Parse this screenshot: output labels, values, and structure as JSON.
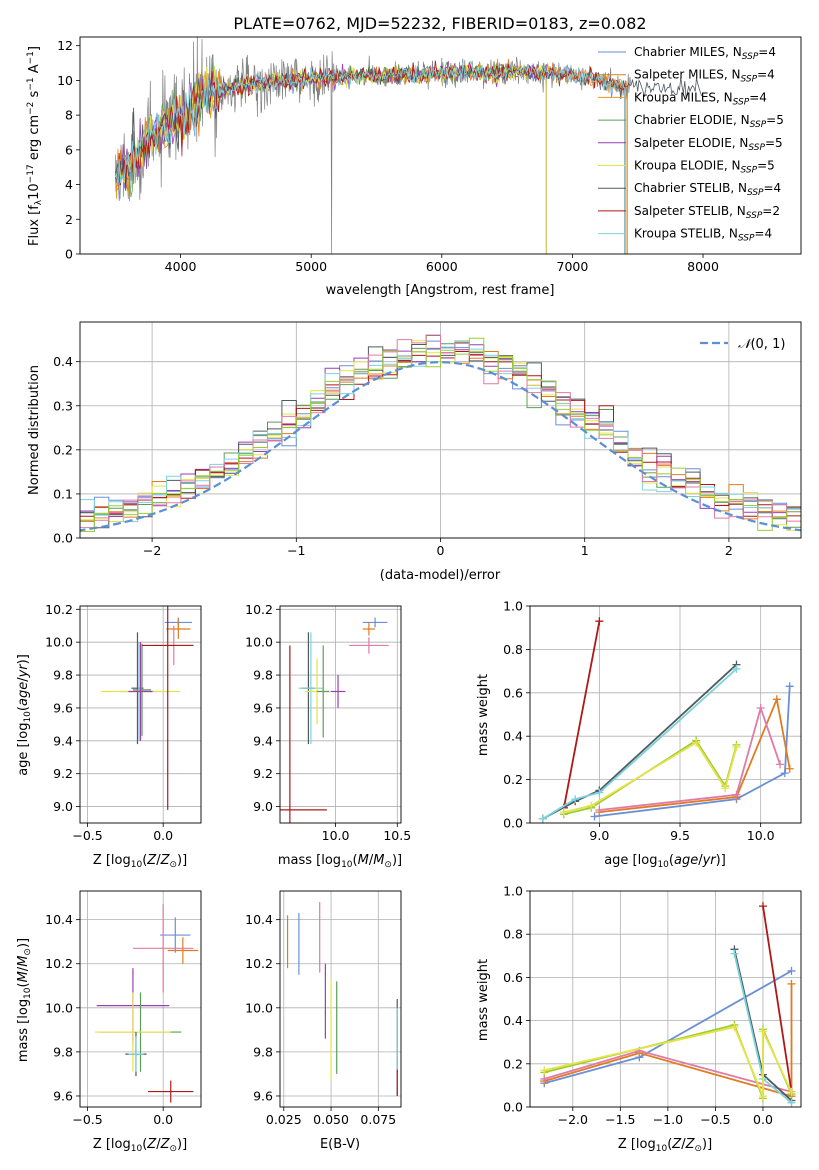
{
  "title": "PLATE=0762, MJD=52232, FIBERID=0183, z=0.082",
  "colors": {
    "Chabrier MILES": "#6a8fd8",
    "Salpeter MILES": "#e07c20",
    "Kroupa MILES": "#e8971f",
    "Chabrier ELODIE": "#5c9e58",
    "Salpeter ELODIE": "#9a3fb5",
    "Kroupa ELODIE": "#e6e24a",
    "Chabrier STELIB": "#505a60",
    "Salpeter STELIB": "#b01818",
    "Kroupa STELIB": "#7dd3dc",
    "data": "#808080",
    "normal": "#5b8fd6",
    "pink": "#e07aa8",
    "olive": "#9acd32"
  },
  "chart_data": [
    {
      "id": "spectrum",
      "type": "line",
      "xlabel": "wavelength [Angstrom, rest frame]",
      "ylabel": "Flux [f_λ10^{-17} erg cm^{-2} s^{-1} A^{-1}]",
      "xlim": [
        3230,
        8750
      ],
      "ylim": [
        0,
        12.5
      ],
      "xticks": [
        4000,
        5000,
        6000,
        7000,
        8000
      ],
      "yticks": [
        0,
        2,
        4,
        6,
        8,
        10,
        12
      ],
      "grid": false,
      "legend_position": "right",
      "legend": [
        {
          "label": "Chabrier MILES, N_SSP=4",
          "color": "Chabrier MILES"
        },
        {
          "label": "Salpeter MILES, N_SSP=4",
          "color": "Salpeter MILES"
        },
        {
          "label": "Kroupa MILES, N_SSP=4",
          "color": "Kroupa MILES"
        },
        {
          "label": "Chabrier ELODIE, N_SSP=5",
          "color": "Chabrier ELODIE"
        },
        {
          "label": "Salpeter ELODIE, N_SSP=5",
          "color": "Salpeter ELODIE"
        },
        {
          "label": "Kroupa ELODIE, N_SSP=5",
          "color": "Kroupa ELODIE"
        },
        {
          "label": "Chabrier STELIB, N_SSP=4",
          "color": "Chabrier STELIB"
        },
        {
          "label": "Salpeter STELIB, N_SSP=2",
          "color": "Salpeter STELIB"
        },
        {
          "label": "Kroupa STELIB, N_SSP=4",
          "color": "Kroupa STELIB"
        }
      ],
      "continuum": {
        "x": [
          3500,
          3600,
          3700,
          3800,
          3900,
          4000,
          4100,
          4200,
          4400,
          4600,
          4800,
          5000,
          5200,
          5400,
          5600,
          5800,
          6000,
          6200,
          6400,
          6600,
          6800,
          7000,
          7200,
          7400
        ],
        "y": [
          4.5,
          5.2,
          6.0,
          6.8,
          7.3,
          7.8,
          8.6,
          9.3,
          9.6,
          9.8,
          10.0,
          10.1,
          10.2,
          10.25,
          10.3,
          10.35,
          10.4,
          10.45,
          10.45,
          10.5,
          10.45,
          10.3,
          10.0,
          9.6
        ]
      }
    },
    {
      "id": "residuals",
      "type": "histogram",
      "xlabel": "(data-model)/error",
      "ylabel": "Normed distribution",
      "xlim": [
        -2.5,
        2.5
      ],
      "ylim": [
        0,
        0.49
      ],
      "xticks": [
        -2,
        -1,
        0,
        1,
        2
      ],
      "yticks": [
        0.0,
        0.1,
        0.2,
        0.3,
        0.4
      ],
      "grid": true,
      "legend_position": "top-right",
      "legend": [
        {
          "label": "N(0,1)",
          "color": "normal"
        }
      ],
      "bin_width": 0.1
    },
    {
      "id": "age-vs-Z",
      "type": "errorbar",
      "xlabel": "Z [log10(Z/Z⊙)]",
      "ylabel": "age [log10(age/yr)]",
      "xlim": [
        -0.55,
        0.25
      ],
      "ylim": [
        8.9,
        10.22
      ],
      "xticks": [
        -0.5,
        0.0
      ],
      "yticks": [
        9.0,
        9.2,
        9.4,
        9.6,
        9.8,
        10.0,
        10.2
      ],
      "grid": true,
      "points": [
        {
          "c": "Chabrier MILES",
          "x": 0.1,
          "y": 10.12,
          "xerr": 0.09,
          "yerr": 0.03
        },
        {
          "c": "Salpeter MILES",
          "x": 0.1,
          "y": 10.08,
          "xerr": 0.08,
          "yerr": 0.06
        },
        {
          "c": "pink",
          "x": 0.07,
          "y": 9.98,
          "xerr": 0.13,
          "yerr": 0.12
        },
        {
          "c": "Chabrier STELIB",
          "x": -0.17,
          "y": 9.72,
          "xerr": 0.04,
          "yerr": 0.34
        },
        {
          "c": "Chabrier ELODIE",
          "x": -0.14,
          "y": 9.71,
          "xerr": 0.06,
          "yerr": 0.28
        },
        {
          "c": "Kroupa STELIB",
          "x": -0.16,
          "y": 9.7,
          "xerr": 0.12,
          "yerr": 0.3
        },
        {
          "c": "Kroupa ELODIE",
          "x": -0.15,
          "y": 9.7,
          "xerr": 0.26,
          "yerr": 0.29
        },
        {
          "c": "Salpeter ELODIE",
          "x": -0.15,
          "y": 9.7,
          "xerr": 0.08,
          "yerr": 0.3
        },
        {
          "c": "Salpeter STELIB",
          "x": 0.03,
          "y": 9.98,
          "xerr": 0.17,
          "yerr": 1.0
        }
      ]
    },
    {
      "id": "age-vs-mass",
      "type": "errorbar",
      "xlabel": "mass [log10(M/M⊙)]",
      "ylabel": "",
      "xlim": [
        9.55,
        10.53
      ],
      "ylim": [
        8.9,
        10.22
      ],
      "xticks": [
        9.5,
        10.0,
        10.5
      ],
      "yticks": [
        9.0,
        9.2,
        9.4,
        9.6,
        9.8,
        10.0,
        10.2
      ],
      "grid": true,
      "points": [
        {
          "c": "Chabrier MILES",
          "x": 10.32,
          "y": 10.12,
          "xerr": 0.1,
          "yerr": 0.03
        },
        {
          "c": "Salpeter MILES",
          "x": 10.27,
          "y": 10.08,
          "xerr": 0.05,
          "yerr": 0.04
        },
        {
          "c": "pink",
          "x": 10.27,
          "y": 9.98,
          "xerr": 0.16,
          "yerr": 0.05
        },
        {
          "c": "Chabrier STELIB",
          "x": 9.78,
          "y": 9.72,
          "xerr": 0.05,
          "yerr": 0.34
        },
        {
          "c": "Kroupa STELIB",
          "x": 9.8,
          "y": 9.72,
          "xerr": 0.1,
          "yerr": 0.34
        },
        {
          "c": "Kroupa ELODIE",
          "x": 9.85,
          "y": 9.7,
          "xerr": 0.1,
          "yerr": 0.2
        },
        {
          "c": "Chabrier ELODIE",
          "x": 9.9,
          "y": 9.7,
          "xerr": 0.05,
          "yerr": 0.28
        },
        {
          "c": "Salpeter ELODIE",
          "x": 10.02,
          "y": 9.7,
          "xerr": 0.06,
          "yerr": 0.1
        },
        {
          "c": "Salpeter STELIB",
          "x": 9.63,
          "y": 8.98,
          "xerr": 0.3,
          "yerr": 1.0
        }
      ]
    },
    {
      "id": "weight-vs-age",
      "type": "line",
      "xlabel": "age [log10(age/yr)]",
      "ylabel": "mass weight",
      "xlim": [
        8.57,
        10.25
      ],
      "ylim": [
        0,
        1.0
      ],
      "xticks": [
        9.0,
        9.5,
        10.0
      ],
      "yticks": [
        0.0,
        0.2,
        0.4,
        0.6,
        0.8,
        1.0
      ],
      "grid": true,
      "series": [
        {
          "c": "Chabrier MILES",
          "x": [
            8.97,
            9.85,
            10.15,
            10.18
          ],
          "y": [
            0.03,
            0.11,
            0.23,
            0.63
          ]
        },
        {
          "c": "Salpeter MILES",
          "x": [
            9.0,
            9.85,
            10.1,
            10.18
          ],
          "y": [
            0.05,
            0.12,
            0.57,
            0.25
          ]
        },
        {
          "c": "pink",
          "x": [
            9.0,
            9.85,
            10.0,
            10.12
          ],
          "y": [
            0.06,
            0.13,
            0.53,
            0.27
          ]
        },
        {
          "c": "Salpeter STELIB",
          "x": [
            8.78,
            9.0
          ],
          "y": [
            0.07,
            0.93
          ]
        },
        {
          "c": "Chabrier STELIB",
          "x": [
            8.65,
            8.85,
            9.0,
            9.85
          ],
          "y": [
            0.02,
            0.1,
            0.15,
            0.73
          ]
        },
        {
          "c": "Kroupa STELIB",
          "x": [
            8.65,
            8.85,
            9.0,
            9.85
          ],
          "y": [
            0.02,
            0.11,
            0.14,
            0.71
          ]
        },
        {
          "c": "olive",
          "x": [
            8.78,
            8.95,
            9.6,
            9.78,
            9.85
          ],
          "y": [
            0.04,
            0.07,
            0.38,
            0.17,
            0.36
          ]
        },
        {
          "c": "Kroupa ELODIE",
          "x": [
            8.78,
            8.95,
            9.6,
            9.78,
            9.85
          ],
          "y": [
            0.05,
            0.08,
            0.37,
            0.16,
            0.35
          ]
        }
      ]
    },
    {
      "id": "mass-vs-Z",
      "type": "errorbar",
      "xlabel": "Z [log10(Z/Z⊙)]",
      "ylabel": "mass [log10(M/M⊙)]",
      "xlim": [
        -0.55,
        0.25
      ],
      "ylim": [
        9.55,
        10.53
      ],
      "xticks": [
        -0.5,
        0.0
      ],
      "yticks": [
        9.6,
        9.8,
        10.0,
        10.2,
        10.4
      ],
      "grid": true,
      "points": [
        {
          "c": "Chabrier MILES",
          "x": 0.08,
          "y": 10.33,
          "xerr": 0.1,
          "yerr": 0.08
        },
        {
          "c": "Salpeter MILES",
          "x": 0.13,
          "y": 10.26,
          "xerr": 0.1,
          "yerr": 0.06
        },
        {
          "c": "pink",
          "x": 0.0,
          "y": 10.27,
          "xerr": 0.2,
          "yerr": 0.2
        },
        {
          "c": "Salpeter ELODIE",
          "x": -0.2,
          "y": 10.01,
          "xerr": 0.24,
          "yerr": 0.17
        },
        {
          "c": "Chabrier ELODIE",
          "x": -0.15,
          "y": 9.89,
          "xerr": 0.27,
          "yerr": 0.18
        },
        {
          "c": "Kroupa ELODIE",
          "x": -0.2,
          "y": 9.89,
          "xerr": 0.25,
          "yerr": 0.18
        },
        {
          "c": "Chabrier STELIB",
          "x": -0.18,
          "y": 9.79,
          "xerr": 0.07,
          "yerr": 0.1
        },
        {
          "c": "Kroupa STELIB",
          "x": -0.18,
          "y": 9.79,
          "xerr": 0.05,
          "yerr": 0.08
        },
        {
          "c": "Salpeter STELIB",
          "x": 0.05,
          "y": 9.62,
          "xerr": 0.15,
          "yerr": 0.05
        }
      ]
    },
    {
      "id": "mass-vs-ebv",
      "type": "errorbar",
      "xlabel": "E(B-V)",
      "ylabel": "",
      "xlim": [
        0.023,
        0.087
      ],
      "ylim": [
        9.55,
        10.53
      ],
      "xticks": [
        0.025,
        0.05,
        0.075
      ],
      "yticks": [
        9.6,
        9.8,
        10.0,
        10.2,
        10.4
      ],
      "grid": true,
      "points": [
        {
          "c": "Salpeter MILES",
          "x": 0.027,
          "y": 10.3,
          "xerr": 0,
          "yerr": 0.12
        },
        {
          "c": "Chabrier MILES",
          "x": 0.033,
          "y": 10.29,
          "xerr": 0,
          "yerr": 0.14
        },
        {
          "c": "pink",
          "x": 0.044,
          "y": 10.32,
          "xerr": 0,
          "yerr": 0.16
        },
        {
          "c": "Salpeter ELODIE",
          "x": 0.047,
          "y": 10.03,
          "xerr": 0,
          "yerr": 0.17
        },
        {
          "c": "Kroupa ELODIE",
          "x": 0.05,
          "y": 9.9,
          "xerr": 0,
          "yerr": 0.23
        },
        {
          "c": "Chabrier ELODIE",
          "x": 0.053,
          "y": 9.91,
          "xerr": 0,
          "yerr": 0.21
        },
        {
          "c": "Chabrier STELIB",
          "x": 0.085,
          "y": 9.82,
          "xerr": 0,
          "yerr": 0.22
        },
        {
          "c": "Kroupa STELIB",
          "x": 0.085,
          "y": 9.8,
          "xerr": 0,
          "yerr": 0.2
        },
        {
          "c": "Salpeter STELIB",
          "x": 0.085,
          "y": 9.66,
          "xerr": 0,
          "yerr": 0.06
        }
      ]
    },
    {
      "id": "weight-vs-Z",
      "type": "line",
      "xlabel": "Z [log10(Z/Z⊙)]",
      "ylabel": "mass weight",
      "xlim": [
        -2.45,
        0.4
      ],
      "ylim": [
        0,
        1.0
      ],
      "xticks": [
        -2.0,
        -1.5,
        -1.0,
        -0.5,
        0.0
      ],
      "yticks": [
        0.0,
        0.2,
        0.4,
        0.6,
        0.8,
        1.0
      ],
      "grid": true,
      "series": [
        {
          "c": "Chabrier MILES",
          "x": [
            -2.3,
            -1.3,
            0.3
          ],
          "y": [
            0.11,
            0.23,
            0.63
          ]
        },
        {
          "c": "Salpeter MILES",
          "x": [
            -2.3,
            -1.3,
            0.3,
            0.3
          ],
          "y": [
            0.12,
            0.25,
            0.05,
            0.57
          ]
        },
        {
          "c": "pink",
          "x": [
            -2.3,
            -1.3,
            0.3
          ],
          "y": [
            0.13,
            0.26,
            0.07
          ]
        },
        {
          "c": "Salpeter STELIB",
          "x": [
            0.0,
            0.3
          ],
          "y": [
            0.93,
            0.07
          ]
        },
        {
          "c": "Chabrier STELIB",
          "x": [
            -0.3,
            0.0,
            0.3
          ],
          "y": [
            0.73,
            0.15,
            0.03
          ]
        },
        {
          "c": "Kroupa STELIB",
          "x": [
            -0.3,
            0.0,
            0.3
          ],
          "y": [
            0.71,
            0.13,
            0.02
          ]
        },
        {
          "c": "olive",
          "x": [
            -2.3,
            -0.3,
            0.0,
            0.0,
            0.3
          ],
          "y": [
            0.16,
            0.38,
            0.04,
            0.36,
            0.06
          ]
        },
        {
          "c": "Kroupa ELODIE",
          "x": [
            -2.3,
            -0.3,
            0.0,
            0.0,
            0.3
          ],
          "y": [
            0.17,
            0.37,
            0.05,
            0.35,
            0.07
          ]
        }
      ]
    }
  ]
}
